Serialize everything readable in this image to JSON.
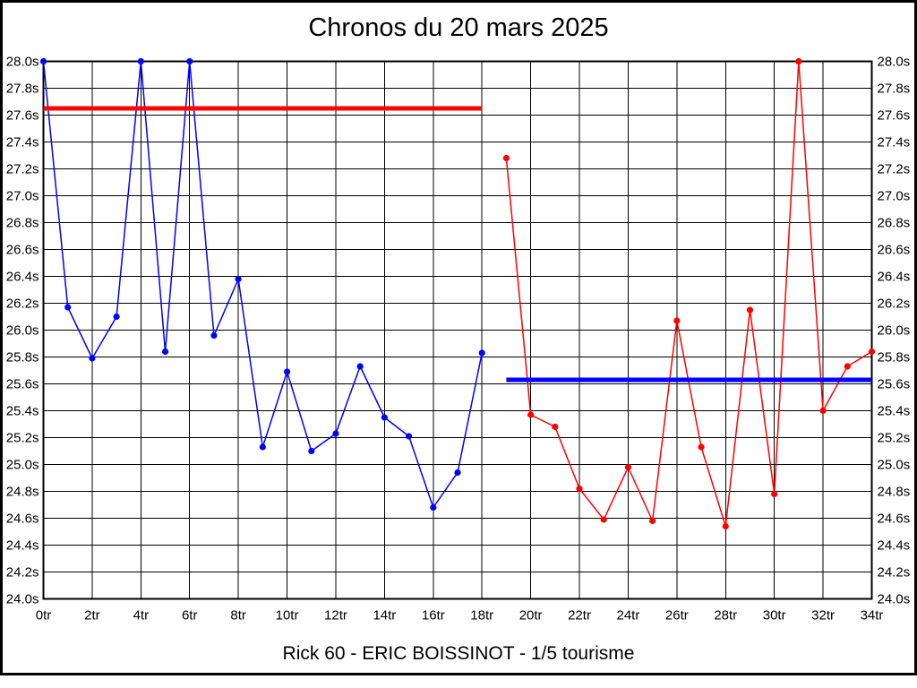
{
  "chart_data": {
    "type": "line",
    "title": "Chronos du 20 mars 2025",
    "footer": "Rick 60 - ERIC BOISSINOT - 1/5 tourisme",
    "xlabel": "",
    "ylabel": "",
    "x_unit": "tr",
    "y_unit": "s",
    "xlim": [
      0,
      34
    ],
    "ylim": [
      24.0,
      28.0
    ],
    "x_tick_step": 2,
    "y_tick_step": 0.2,
    "grid": true,
    "axis_labels_both_sides": true,
    "colors": {
      "background": "#ffffff",
      "grid": "#000000",
      "text": "#000000",
      "blue_series": "#0000ff",
      "red_series": "#ff0000"
    },
    "y_tick_labels": [
      "28.0s",
      "27.8s",
      "27.6s",
      "27.4s",
      "27.2s",
      "27.0s",
      "26.8s",
      "26.6s",
      "26.4s",
      "26.2s",
      "26.0s",
      "25.8s",
      "25.6s",
      "25.4s",
      "25.2s",
      "25.0s",
      "24.8s",
      "24.6s",
      "24.4s",
      "24.2s",
      "24.0s"
    ],
    "x_tick_labels": [
      "0tr",
      "2tr",
      "4tr",
      "6tr",
      "8tr",
      "10tr",
      "12tr",
      "14tr",
      "16tr",
      "18tr",
      "20tr",
      "22tr",
      "24tr",
      "26tr",
      "28tr",
      "30tr",
      "32tr",
      "34tr"
    ],
    "series": [
      {
        "name": "session-1-blue",
        "color": "#0000ff",
        "x": [
          0,
          1,
          2,
          3,
          4,
          5,
          6,
          7,
          8,
          9,
          10,
          11,
          12,
          13,
          14,
          15,
          16,
          17,
          18
        ],
        "values": [
          28.0,
          26.17,
          25.79,
          26.1,
          28.0,
          25.84,
          28.0,
          25.96,
          26.38,
          25.13,
          25.69,
          25.1,
          25.23,
          25.73,
          25.35,
          25.21,
          24.68,
          24.94,
          25.83
        ]
      },
      {
        "name": "session-2-red",
        "color": "#ff0000",
        "x": [
          19,
          20,
          21,
          22,
          23,
          24,
          25,
          26,
          27,
          28,
          29,
          30,
          31,
          32,
          33,
          34
        ],
        "values": [
          27.28,
          25.37,
          25.28,
          24.82,
          24.59,
          24.98,
          24.58,
          26.07,
          25.13,
          24.54,
          26.15,
          24.78,
          28.0,
          25.4,
          25.73,
          25.84
        ]
      }
    ],
    "reference_lines": [
      {
        "name": "red-reference-line",
        "color": "#ff0000",
        "value": 27.65,
        "x_start": 0,
        "x_end": 18
      },
      {
        "name": "blue-reference-line",
        "color": "#0000ff",
        "value": 25.63,
        "x_start": 19,
        "x_end": 34
      }
    ]
  }
}
